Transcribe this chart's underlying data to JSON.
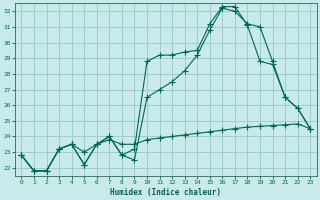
{
  "xlabel": "Humidex (Indice chaleur)",
  "bg_color": "#c8eaea",
  "grid_color": "#a0cccc",
  "line_color": "#006655",
  "spine_color": "#336655",
  "xlim": [
    -0.5,
    23.5
  ],
  "ylim": [
    21.5,
    32.5
  ],
  "xticks": [
    0,
    1,
    2,
    3,
    4,
    5,
    6,
    7,
    8,
    9,
    10,
    11,
    12,
    13,
    14,
    15,
    16,
    17,
    18,
    19,
    20,
    21,
    22,
    23
  ],
  "yticks": [
    22,
    23,
    24,
    25,
    26,
    27,
    28,
    29,
    30,
    31,
    32
  ],
  "line1_x": [
    0,
    1,
    2,
    3,
    4,
    5,
    6,
    7,
    8,
    9,
    10,
    11,
    12,
    13,
    14,
    15,
    16,
    17,
    18,
    19,
    20,
    21,
    22,
    23
  ],
  "line1_y": [
    22.8,
    21.8,
    21.8,
    23.2,
    23.5,
    23.0,
    23.5,
    23.8,
    23.5,
    23.5,
    23.8,
    23.9,
    24.0,
    24.1,
    24.2,
    24.3,
    24.4,
    24.5,
    24.6,
    24.65,
    24.7,
    24.75,
    24.8,
    24.5
  ],
  "line2_x": [
    0,
    1,
    2,
    3,
    4,
    5,
    6,
    7,
    8,
    9,
    10,
    11,
    12,
    13,
    14,
    15,
    16,
    17,
    18,
    19,
    20,
    21,
    22,
    23
  ],
  "line2_y": [
    22.8,
    21.8,
    21.8,
    23.2,
    23.5,
    22.2,
    23.5,
    24.0,
    22.8,
    23.2,
    28.8,
    29.2,
    29.2,
    29.4,
    29.5,
    31.2,
    32.3,
    32.3,
    31.1,
    28.8,
    28.6,
    26.5,
    25.8,
    24.5
  ],
  "line3_x": [
    0,
    1,
    2,
    3,
    4,
    5,
    6,
    7,
    8,
    9,
    10,
    11,
    12,
    13,
    14,
    15,
    16,
    17,
    18,
    19,
    20,
    21,
    22,
    23
  ],
  "line3_y": [
    22.8,
    21.8,
    21.8,
    23.2,
    23.5,
    22.2,
    23.5,
    24.0,
    22.8,
    22.5,
    26.5,
    27.0,
    27.5,
    28.2,
    29.2,
    30.8,
    32.2,
    32.0,
    31.2,
    31.0,
    28.8,
    26.5,
    25.8,
    24.5
  ]
}
